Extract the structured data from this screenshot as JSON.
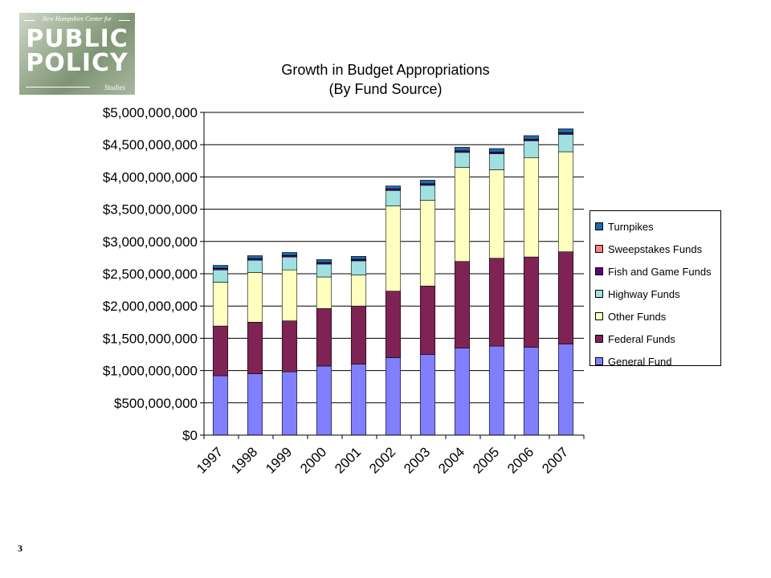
{
  "logo": {
    "tagline": "New Hampshire Center for",
    "line1": "PUBLIC",
    "line2": "POLICY",
    "line3": "Studies"
  },
  "page_number": "3",
  "chart_data": {
    "type": "bar",
    "stacked": true,
    "title": "Growth in Budget Appropriations",
    "subtitle": "(By Fund Source)",
    "xlabel": "",
    "ylabel": "",
    "ylim": [
      0,
      5000000000
    ],
    "ytick_step": 500000000,
    "ytick_labels": [
      "$0",
      "$500,000,000",
      "$1,000,000,000",
      "$1,500,000,000",
      "$2,000,000,000",
      "$2,500,000,000",
      "$3,000,000,000",
      "$3,500,000,000",
      "$4,000,000,000",
      "$4,500,000,000",
      "$5,000,000,000"
    ],
    "grid": true,
    "legend_position": "right",
    "categories": [
      "1997",
      "1998",
      "1999",
      "2000",
      "2001",
      "2002",
      "2003",
      "2004",
      "2005",
      "2006",
      "2007"
    ],
    "series": [
      {
        "name": "General Fund",
        "color": "#8080ff",
        "values": [
          920000000,
          950000000,
          980000000,
          1070000000,
          1100000000,
          1200000000,
          1250000000,
          1350000000,
          1380000000,
          1360000000,
          1410000000
        ]
      },
      {
        "name": "Federal Funds",
        "color": "#7f2355",
        "values": [
          770000000,
          800000000,
          790000000,
          890000000,
          900000000,
          1030000000,
          1060000000,
          1340000000,
          1360000000,
          1400000000,
          1430000000
        ]
      },
      {
        "name": "Other Funds",
        "color": "#ffffc0",
        "values": [
          680000000,
          770000000,
          790000000,
          490000000,
          480000000,
          1320000000,
          1330000000,
          1460000000,
          1370000000,
          1540000000,
          1550000000
        ]
      },
      {
        "name": "Highway Funds",
        "color": "#a0e0e0",
        "values": [
          190000000,
          190000000,
          200000000,
          200000000,
          220000000,
          240000000,
          230000000,
          230000000,
          250000000,
          260000000,
          270000000
        ]
      },
      {
        "name": "Fish and Game Funds",
        "color": "#60007f",
        "values": [
          20000000,
          20000000,
          20000000,
          20000000,
          20000000,
          20000000,
          20000000,
          20000000,
          20000000,
          20000000,
          20000000
        ]
      },
      {
        "name": "Sweepstakes Funds",
        "color": "#ff8080",
        "values": [
          5000000,
          5000000,
          5000000,
          5000000,
          5000000,
          5000000,
          5000000,
          5000000,
          5000000,
          5000000,
          5000000
        ]
      },
      {
        "name": "Turnpikes",
        "color": "#1f6aa8",
        "values": [
          45000000,
          45000000,
          45000000,
          45000000,
          45000000,
          45000000,
          55000000,
          55000000,
          55000000,
          55000000,
          60000000
        ]
      }
    ]
  }
}
